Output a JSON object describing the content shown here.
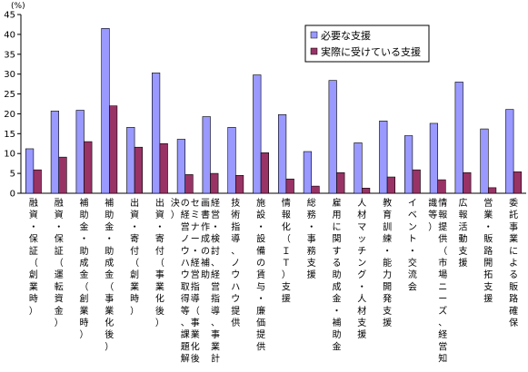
{
  "chart_data": {
    "type": "bar",
    "unit_label": "(%)",
    "title": "",
    "xlabel": "",
    "ylabel": "",
    "ylim": [
      0,
      45
    ],
    "yticks": [
      0,
      5,
      10,
      15,
      20,
      25,
      30,
      35,
      40,
      45
    ],
    "grid": false,
    "legend_position": "top-right",
    "categories": [
      "融資・保証（創業時）",
      "融資・保証（運転資金）",
      "補助金・助成金（創業時）",
      "補助金・助成金（事業化後）",
      "出資・寄付（創業時）",
      "出資・寄付（事業化後）",
      "セミナー・経営指導（事業化後の経営ノウハウ取得等、課題解決）",
      "経営・検討、経営指導、事業計画書作成の補助",
      "技術指導、ノウハウ提供",
      "施設・設備の賃与・廉価提供",
      "情報化（ＩＴ）支援",
      "総務・事務支援",
      "雇用に関する助成金・補助金",
      "人材マッチング・人材支援",
      "教育訓練・能力開発支援",
      "イベント・交流会",
      "情報提供（市場ニーズ、経営知識等）",
      "広報活動支援",
      "営業・販路開拓支援",
      "委託事業による販路確保"
    ],
    "series": [
      {
        "name": "必要な支援",
        "color": "#9999ff",
        "values": [
          11.2,
          20.7,
          20.9,
          41.5,
          16.6,
          30.3,
          13.6,
          19.3,
          16.6,
          29.8,
          19.8,
          10.5,
          28.4,
          12.7,
          18.2,
          14.5,
          17.6,
          28.0,
          16.2,
          21.1
        ]
      },
      {
        "name": "実際に受けている支援",
        "color": "#993366",
        "values": [
          5.9,
          9.1,
          13.0,
          22.0,
          11.6,
          12.5,
          4.7,
          5.0,
          4.5,
          10.2,
          3.6,
          1.8,
          5.2,
          1.3,
          4.1,
          5.9,
          3.4,
          5.2,
          1.4,
          5.4
        ]
      }
    ]
  }
}
